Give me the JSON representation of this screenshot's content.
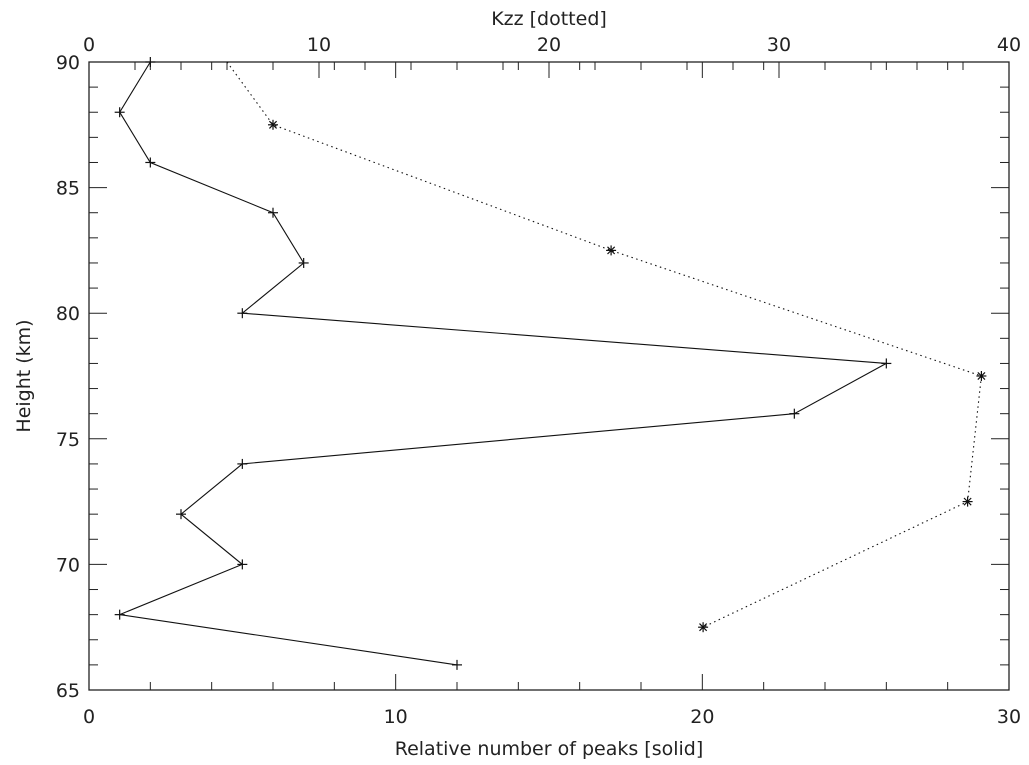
{
  "chart_data": {
    "type": "line",
    "xlabel_bottom": "Relative number of peaks [solid]",
    "xlabel_top": "Kzz [dotted]",
    "ylabel": "Height (km)",
    "xlim_bottom": [
      0,
      30
    ],
    "xlim_top": [
      0,
      40
    ],
    "ylim": [
      65,
      90
    ],
    "xticks_bottom": [
      "0",
      "10",
      "20",
      "30"
    ],
    "xticks_top": [
      "0",
      "10",
      "20",
      "30",
      "40"
    ],
    "yticks": [
      "65",
      "70",
      "75",
      "80",
      "85",
      "90"
    ],
    "grid": false,
    "series": [
      {
        "style": "solid",
        "marker": "plus",
        "axis": "bottom",
        "x": [
          2,
          1,
          2,
          6,
          7,
          5,
          26,
          23,
          5,
          3,
          5,
          1,
          12
        ],
        "y": [
          90,
          88,
          86,
          84,
          82,
          80,
          78,
          76,
          74,
          72,
          70,
          68,
          66
        ]
      },
      {
        "style": "dotted",
        "marker": "asterisk",
        "axis": "top",
        "x": [
          6,
          8,
          22.7,
          38.8,
          38.2,
          26.7
        ],
        "y": [
          90,
          87.5,
          82.5,
          77.5,
          72.5,
          67.5
        ],
        "marked_points": [
          false,
          true,
          true,
          true,
          true,
          true
        ]
      }
    ]
  }
}
